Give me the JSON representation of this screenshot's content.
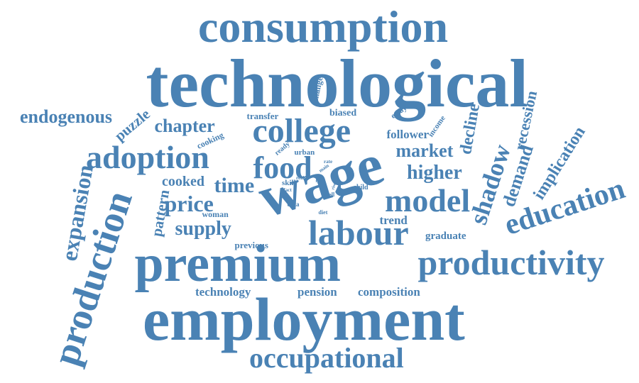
{
  "color": "#4a82b4",
  "words": [
    {
      "text": "technological",
      "weight": 100,
      "orientation": "horizontal"
    },
    {
      "text": "employment",
      "weight": 86,
      "orientation": "horizontal"
    },
    {
      "text": "wage",
      "weight": 84,
      "orientation": "rotated"
    },
    {
      "text": "premium",
      "weight": 78,
      "orientation": "horizontal"
    },
    {
      "text": "consumption",
      "weight": 76,
      "orientation": "horizontal"
    },
    {
      "text": "production",
      "weight": 62,
      "orientation": "rotated"
    },
    {
      "text": "productivity",
      "weight": 58,
      "orientation": "horizontal"
    },
    {
      "text": "labour",
      "weight": 57,
      "orientation": "horizontal"
    },
    {
      "text": "college",
      "weight": 55,
      "orientation": "horizontal"
    },
    {
      "text": "adoption",
      "weight": 54,
      "orientation": "horizontal"
    },
    {
      "text": "model",
      "weight": 50,
      "orientation": "horizontal"
    },
    {
      "text": "food",
      "weight": 48,
      "orientation": "horizontal"
    },
    {
      "text": "education",
      "weight": 44,
      "orientation": "rotated"
    },
    {
      "text": "occupational",
      "weight": 44,
      "orientation": "horizontal"
    },
    {
      "text": "shadow",
      "weight": 40,
      "orientation": "rotated"
    },
    {
      "text": "expansion",
      "weight": 36,
      "orientation": "rotated"
    },
    {
      "text": "price",
      "weight": 35,
      "orientation": "horizontal"
    },
    {
      "text": "time",
      "weight": 34,
      "orientation": "horizontal"
    },
    {
      "text": "supply",
      "weight": 32,
      "orientation": "horizontal"
    },
    {
      "text": "higher",
      "weight": 31,
      "orientation": "horizontal"
    },
    {
      "text": "market",
      "weight": 30,
      "orientation": "horizontal"
    },
    {
      "text": "endogenous",
      "weight": 29,
      "orientation": "horizontal"
    },
    {
      "text": "chapter",
      "weight": 29,
      "orientation": "horizontal"
    },
    {
      "text": "demand",
      "weight": 28,
      "orientation": "rotated"
    },
    {
      "text": "implication",
      "weight": 27,
      "orientation": "rotated"
    },
    {
      "text": "decline",
      "weight": 27,
      "orientation": "rotated"
    },
    {
      "text": "recession",
      "weight": 26,
      "orientation": "rotated"
    },
    {
      "text": "pattern",
      "weight": 24,
      "orientation": "rotated"
    },
    {
      "text": "puzzle",
      "weight": 24,
      "orientation": "rotated"
    },
    {
      "text": "cooked",
      "weight": 22,
      "orientation": "horizontal"
    },
    {
      "text": "pension",
      "weight": 20,
      "orientation": "horizontal"
    },
    {
      "text": "composition",
      "weight": 20,
      "orientation": "horizontal"
    },
    {
      "text": "technology",
      "weight": 20,
      "orientation": "horizontal"
    },
    {
      "text": "follower",
      "weight": 19,
      "orientation": "horizontal"
    },
    {
      "text": "trend",
      "weight": 18,
      "orientation": "horizontal"
    },
    {
      "text": "graduate",
      "weight": 17,
      "orientation": "horizontal"
    },
    {
      "text": "biased",
      "weight": 16,
      "orientation": "horizontal"
    },
    {
      "text": "previous",
      "weight": 15,
      "orientation": "horizontal"
    },
    {
      "text": "transfer",
      "weight": 14,
      "orientation": "horizontal"
    },
    {
      "text": "cooking",
      "weight": 13,
      "orientation": "rotated"
    },
    {
      "text": "woman",
      "weight": 13,
      "orientation": "horizontal"
    },
    {
      "text": "change",
      "weight": 13,
      "orientation": "rotated"
    },
    {
      "text": "essay",
      "weight": 13,
      "orientation": "rotated"
    },
    {
      "text": "income",
      "weight": 12,
      "orientation": "rotated"
    },
    {
      "text": "urban",
      "weight": 11,
      "orientation": "horizontal"
    },
    {
      "text": "skill",
      "weight": 11,
      "orientation": "horizontal"
    },
    {
      "text": "ready",
      "weight": 10,
      "orientation": "rotated"
    },
    {
      "text": "child",
      "weight": 10,
      "orientation": "horizontal"
    },
    {
      "text": "data",
      "weight": 10,
      "orientation": "horizontal"
    },
    {
      "text": "diet",
      "weight": 9,
      "orientation": "horizontal"
    },
    {
      "text": "tell",
      "weight": 9,
      "orientation": "horizontal"
    },
    {
      "text": "rate",
      "weight": 8,
      "orientation": "horizontal"
    },
    {
      "text": "real",
      "weight": 8,
      "orientation": "horizontal"
    },
    {
      "text": "main",
      "weight": 8,
      "orientation": "rotated"
    },
    {
      "text": "fact",
      "weight": 7,
      "orientation": "horizontal"
    },
    {
      "text": "fast",
      "weight": 7,
      "orientation": "horizontal"
    },
    {
      "text": "rise",
      "weight": 6,
      "orientation": "rotated"
    }
  ]
}
